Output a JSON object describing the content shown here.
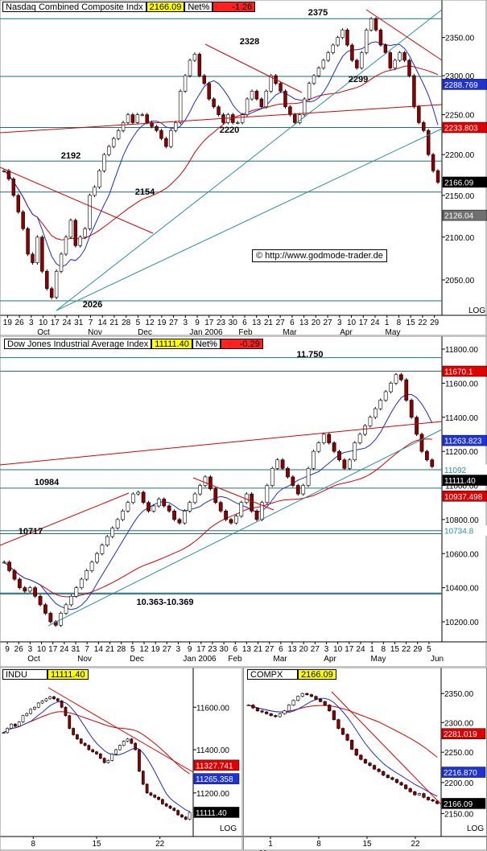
{
  "source": "© http://www.godmode-trader.de",
  "colors": {
    "up": "#ffffff",
    "down": "#8b0000",
    "wick": "#000000",
    "ma_short": "#1c2ccf",
    "ma_long": "#d40000",
    "trend_red": "#d40000",
    "trend_teal": "#2a8f9a",
    "support": "#1e6f7a",
    "yellow": "#ffff00",
    "red_box": "#ff2020"
  },
  "panels": {
    "nasdaq": {
      "header": {
        "name": "Nasdaq Combined Composite Indx",
        "value": "2166.09",
        "net_label": "Net%",
        "net_value": "-1.26"
      },
      "log_label": "LOG",
      "y_ticks": [
        "2350.00",
        "2300.00",
        "2250.00",
        "2200.00",
        "2150.00",
        "2100.00",
        "2050.00"
      ],
      "price_boxes": [
        {
          "label": "2288.769",
          "color": "blue"
        },
        {
          "label": "2233.803",
          "color": "red"
        },
        {
          "label": "2166.09",
          "color": "black"
        },
        {
          "label": "2126.04",
          "color": "gray"
        }
      ],
      "level_labels": [
        "2375",
        "2328",
        "2299",
        "2220",
        "2192",
        "2154",
        "2026"
      ],
      "x_ticks": [
        "19",
        "26",
        "3",
        "10",
        "17",
        "24",
        "31",
        "7",
        "14",
        "21",
        "28",
        "5",
        "12",
        "19",
        "27",
        "3",
        "9",
        "17",
        "23",
        "30",
        "6",
        "13",
        "21",
        "27",
        "6",
        "13",
        "20",
        "27",
        "3",
        "10",
        "17",
        "24",
        "1",
        "8",
        "15",
        "22",
        "29"
      ],
      "x_months": [
        "Oct",
        "Nov",
        "Dec",
        "Jan 2006",
        "Feb",
        "Mar",
        "Apr",
        "May"
      ]
    },
    "dow": {
      "header": {
        "name": "Dow Jones Industrial Average Index",
        "value": "11111.40",
        "net_label": "Net%",
        "net_value": "-0.29"
      },
      "y_ticks": [
        "11800.00",
        "11600.00",
        "11400.00",
        "11200.00",
        "11000.00",
        "10800.00",
        "10600.00",
        "10400.00",
        "10200.00"
      ],
      "price_boxes": [
        {
          "label": "11670.1",
          "color": "red"
        },
        {
          "label": "11263.823",
          "color": "blue"
        },
        {
          "label": "11092",
          "color": "teal"
        },
        {
          "label": "11111.40",
          "color": "black"
        },
        {
          "label": "10937.498",
          "color": "red"
        },
        {
          "label": "10734.8",
          "color": "teal"
        }
      ],
      "level_labels": [
        "11.750",
        "10984",
        "10717",
        "10.363-10.369"
      ],
      "x_ticks": [
        "9",
        "26",
        "3",
        "10",
        "17",
        "24",
        "31",
        "7",
        "14",
        "21",
        "28",
        "5",
        "12",
        "19",
        "27",
        "3",
        "9",
        "17",
        "23",
        "30",
        "6",
        "13",
        "21",
        "27",
        "6",
        "13",
        "20",
        "27",
        "3",
        "10",
        "17",
        "24",
        "1",
        "8",
        "15",
        "22",
        "29",
        "5"
      ],
      "x_months": [
        "Oct",
        "Nov",
        "Dec",
        "Jan 2006",
        "Feb",
        "Mar",
        "Apr",
        "May",
        "Jun"
      ]
    },
    "indu": {
      "header": {
        "name": "INDU",
        "value": "11111.40"
      },
      "log_label": "LOG",
      "y_ticks": [
        "11600.00",
        "11400.00",
        "11200.00"
      ],
      "price_boxes": [
        {
          "label": "11327.741",
          "color": "red"
        },
        {
          "label": "11265.358",
          "color": "blue"
        },
        {
          "label": "11111.40",
          "color": "black"
        }
      ],
      "x_ticks": [
        "8",
        "15",
        "22"
      ]
    },
    "compx": {
      "header": {
        "name": "COMPX",
        "value": "2166.09"
      },
      "log_label": "LOG",
      "y_ticks": [
        "2350.00",
        "2300.00",
        "2250.00",
        "2200.00",
        "2150.00"
      ],
      "price_boxes": [
        {
          "label": "2281.019",
          "color": "red"
        },
        {
          "label": "2216.870",
          "color": "blue"
        },
        {
          "label": "2166.09",
          "color": "black"
        }
      ],
      "x_ticks": [
        "1",
        "8",
        "15",
        "22"
      ],
      "x_months": [
        "May"
      ]
    }
  },
  "chart_data": [
    {
      "type": "candlestick",
      "title": "Nasdaq Combined Composite Indx",
      "ylim": [
        2015,
        2385
      ],
      "log_scale": true,
      "levels": [
        2375,
        2299,
        2233.803,
        2192,
        2154,
        2026
      ],
      "swing_points": [
        {
          "x": "Oct 13",
          "y": 2026
        },
        {
          "x": "Jan 11",
          "y": 2328
        },
        {
          "x": "Feb",
          "y": 2220
        },
        {
          "x": "Apr 19",
          "y": 2375
        },
        {
          "x": "Apr",
          "y": 2299
        }
      ],
      "close_series": [
        2180,
        2170,
        2150,
        2130,
        2110,
        2080,
        2070,
        2100,
        2060,
        2040,
        2030,
        2060,
        2080,
        2100,
        2120,
        2090,
        2100,
        2110,
        2150,
        2160,
        2180,
        2200,
        2210,
        2220,
        2230,
        2240,
        2250,
        2240,
        2250,
        2250,
        2240,
        2235,
        2230,
        2220,
        2210,
        2230,
        2240,
        2280,
        2300,
        2320,
        2328,
        2300,
        2290,
        2270,
        2260,
        2250,
        2240,
        2250,
        2240,
        2240,
        2250,
        2270,
        2280,
        2270,
        2260,
        2280,
        2300,
        2290,
        2280,
        2260,
        2250,
        2240,
        2250,
        2270,
        2290,
        2300,
        2310,
        2320,
        2330,
        2340,
        2350,
        2360,
        2340,
        2320,
        2310,
        2330,
        2360,
        2375,
        2360,
        2340,
        2330,
        2310,
        2320,
        2330,
        2320,
        2300,
        2260,
        2240,
        2230,
        2200,
        2180,
        2166
      ]
    },
    {
      "type": "candlestick",
      "title": "Dow Jones Industrial Average Index",
      "ylim": [
        10120,
        11800
      ],
      "levels": [
        11750,
        11670.1,
        11092,
        10984,
        10734.8,
        10717,
        10369,
        10363
      ],
      "close_series": [
        10550,
        10500,
        10450,
        10400,
        10380,
        10400,
        10350,
        10300,
        10250,
        10200,
        10180,
        10250,
        10300,
        10350,
        10400,
        10450,
        10500,
        10550,
        10600,
        10650,
        10700,
        10750,
        10800,
        10850,
        10900,
        10950,
        10960,
        10900,
        10850,
        10880,
        10920,
        10880,
        10850,
        10800,
        10780,
        10850,
        10900,
        10950,
        11000,
        11050,
        10980,
        10900,
        10850,
        10800,
        10780,
        10820,
        10900,
        10950,
        10850,
        10800,
        10900,
        11000,
        11100,
        11150,
        11100,
        11050,
        11000,
        10950,
        11000,
        11100,
        11200,
        11250,
        11300,
        11250,
        11200,
        11150,
        11100,
        11150,
        11250,
        11300,
        11350,
        11400,
        11450,
        11500,
        11550,
        11600,
        11650,
        11620,
        11500,
        11400,
        11300,
        11200,
        11150,
        11111
      ]
    },
    {
      "type": "candlestick",
      "title": "INDU",
      "ylim": [
        11020,
        11720
      ],
      "close_series": [
        11480,
        11500,
        11520,
        11510,
        11530,
        11560,
        11570,
        11590,
        11600,
        11620,
        11630,
        11640,
        11650,
        11640,
        11630,
        11600,
        11560,
        11500,
        11470,
        11450,
        11430,
        11420,
        11400,
        11390,
        11380,
        11360,
        11340,
        11350,
        11380,
        11400,
        11420,
        11440,
        11450,
        11430,
        11400,
        11300,
        11240,
        11200,
        11190,
        11180,
        11170,
        11150,
        11140,
        11130,
        11120,
        11100,
        11090,
        11080,
        11111
      ]
    },
    {
      "type": "candlestick",
      "title": "COMPX",
      "ylim": [
        2120,
        2370
      ],
      "close_series": [
        2330,
        2325,
        2320,
        2318,
        2315,
        2312,
        2310,
        2315,
        2320,
        2330,
        2338,
        2345,
        2350,
        2348,
        2345,
        2340,
        2336,
        2330,
        2320,
        2305,
        2290,
        2280,
        2270,
        2255,
        2245,
        2238,
        2232,
        2228,
        2222,
        2218,
        2212,
        2208,
        2205,
        2200,
        2196,
        2190,
        2185,
        2180,
        2182,
        2176,
        2172,
        2170,
        2166
      ]
    }
  ]
}
